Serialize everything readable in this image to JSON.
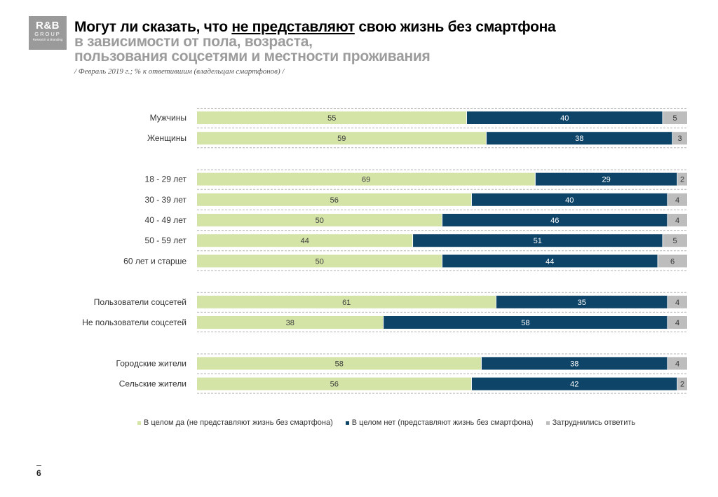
{
  "logo": {
    "main": "R&B",
    "sub": "GROUP",
    "tagline": "Research & Branding"
  },
  "header": {
    "title_pre": "Могут ли сказать, что ",
    "title_underlined": "не представляют",
    "title_post": " свою жизнь без смартфона",
    "subtitle_line1": "в зависимости от пола, возраста,",
    "subtitle_line2": "пользования соцсетями и местности проживания",
    "note": "/ Февраль 2019 г.; % к ответившим (владельцам смартфонов) /"
  },
  "colors": {
    "yes": "#d4e3a6",
    "no": "#0e4468",
    "hard": "#bdbdbd",
    "grid": "#b3b3b3"
  },
  "chart_data": {
    "type": "bar",
    "orientation": "horizontal-stacked-100",
    "groups": [
      {
        "rows": [
          {
            "label": "Мужчины",
            "values": [
              55,
              40,
              5
            ]
          },
          {
            "label": "Женщины",
            "values": [
              59,
              38,
              3
            ]
          }
        ]
      },
      {
        "rows": [
          {
            "label": "18 - 29 лет",
            "values": [
              69,
              29,
              2
            ]
          },
          {
            "label": "30 - 39 лет",
            "values": [
              56,
              40,
              4
            ]
          },
          {
            "label": "40 - 49 лет",
            "values": [
              50,
              46,
              4
            ]
          },
          {
            "label": "50 - 59 лет",
            "values": [
              44,
              51,
              5
            ]
          },
          {
            "label": "60 лет и старше",
            "values": [
              50,
              44,
              6
            ]
          }
        ]
      },
      {
        "rows": [
          {
            "label": "Пользователи соцсетей",
            "values": [
              61,
              35,
              4
            ]
          },
          {
            "label": "Не пользователи соцсетей",
            "values": [
              38,
              58,
              4
            ]
          }
        ]
      },
      {
        "rows": [
          {
            "label": "Городские жители",
            "values": [
              58,
              38,
              4
            ]
          },
          {
            "label": "Сельские жители",
            "values": [
              56,
              42,
              2
            ]
          }
        ]
      }
    ],
    "series": [
      {
        "name": "В целом да (не представляют жизнь без смартфона)"
      },
      {
        "name": "В целом нет (представляют жизнь без смартфона)"
      },
      {
        "name": "Затруднились ответить"
      }
    ],
    "xlim": [
      0,
      100
    ]
  },
  "page_number": "6"
}
